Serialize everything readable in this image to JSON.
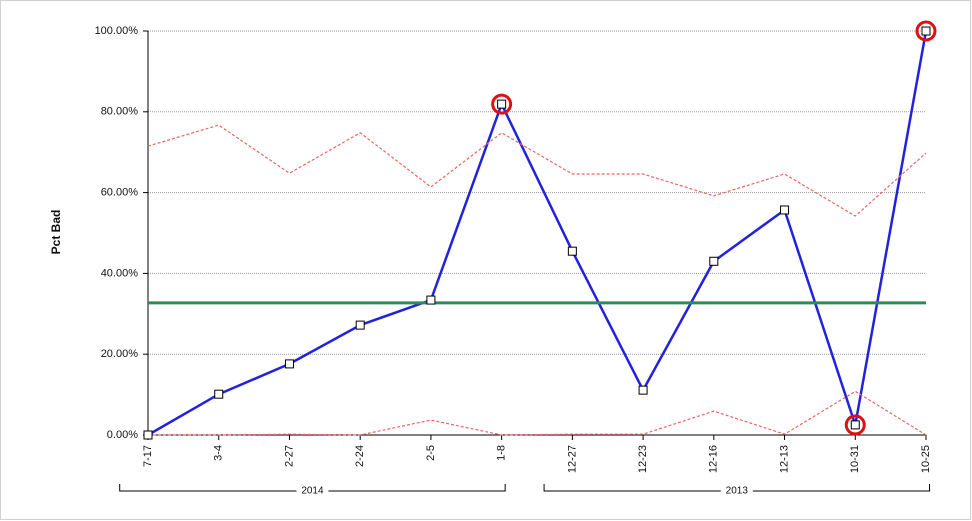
{
  "chart_data": {
    "type": "line",
    "y_label": "Pct Bad",
    "categories": [
      "7-17",
      "3-4",
      "2-27",
      "2-24",
      "2-5",
      "1-8",
      "12-27",
      "12-23",
      "12-16",
      "12-13",
      "10-31",
      "10-25"
    ],
    "series": [
      {
        "color": "#2222dd",
        "markers": true,
        "values": [
          0,
          10.1,
          17.6,
          27.2,
          33.4,
          81.9,
          45.5,
          11.1,
          43,
          55.7,
          2.5,
          100
        ]
      },
      {
        "color": "#f06464",
        "dashed": true,
        "values": [
          71.5,
          76.7,
          64.8,
          74.8,
          61.4,
          74.8,
          64.6,
          64.6,
          59.2,
          64.6,
          54.2,
          69.8
        ]
      },
      {
        "color": "#f06464",
        "dashed": true,
        "values": [
          0,
          0,
          0.2,
          0,
          3.7,
          0,
          0.2,
          0.2,
          5.9,
          0.2,
          10.8,
          0
        ]
      }
    ],
    "center_line": {
      "value": 32.7,
      "color": "#2e8b57"
    },
    "highlighted": [
      5,
      10,
      11
    ],
    "highlight_color": "#e01010",
    "groups": [
      {
        "label": "2014",
        "count": 6
      },
      {
        "label": "2013",
        "count": 6
      }
    ],
    "ylim": [
      0,
      100
    ],
    "yticks": [
      {
        "value": 0,
        "label": "0.00%"
      },
      {
        "value": 20,
        "label": "20.00%"
      },
      {
        "value": 40,
        "label": "40.00%"
      },
      {
        "value": 60,
        "label": "60.00%"
      },
      {
        "value": 80,
        "label": "80.00%"
      },
      {
        "value": 100,
        "label": "100.00%"
      }
    ],
    "grid": true
  }
}
